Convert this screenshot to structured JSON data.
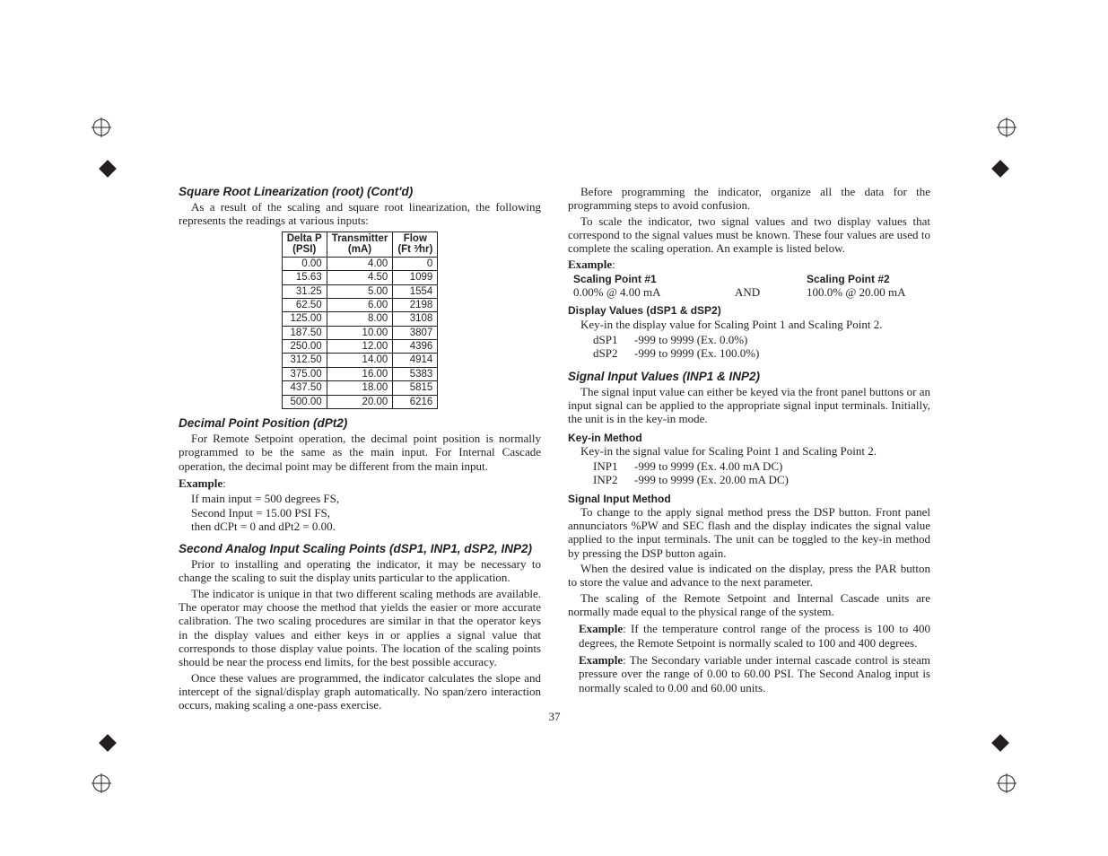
{
  "page_number": "37",
  "left": {
    "h_sqroot": "Square Root Linearization (root) (Cont'd)",
    "p_sqroot": "As a result of the scaling and square root linearization, the following represents the readings at various inputs:",
    "table": {
      "head": {
        "c1a": "Delta P",
        "c1b": "(PSI)",
        "c2a": "Transmitter",
        "c2b": "(mA)",
        "c3a": "Flow",
        "c3b": "(Ft ³⁄hr)"
      },
      "rows": [
        [
          "0.00",
          "4.00",
          "0"
        ],
        [
          "15.63",
          "4.50",
          "1099"
        ],
        [
          "31.25",
          "5.00",
          "1554"
        ],
        [
          "62.50",
          "6.00",
          "2198"
        ],
        [
          "125.00",
          "8.00",
          "3108"
        ],
        [
          "187.50",
          "10.00",
          "3807"
        ],
        [
          "250.00",
          "12.00",
          "4396"
        ],
        [
          "312.50",
          "14.00",
          "4914"
        ],
        [
          "375.00",
          "16.00",
          "5383"
        ],
        [
          "437.50",
          "18.00",
          "5815"
        ],
        [
          "500.00",
          "20.00",
          "6216"
        ]
      ]
    },
    "h_dpt2": "Decimal Point Position (dPt2)",
    "p_dpt2": "For Remote Setpoint operation, the decimal point position is normally programmed to be the same as the main input. For Internal Cascade operation, the decimal point may be different from the main input.",
    "ex_label": "Example",
    "ex_dpt2_1": "If main input = 500 degrees FS,",
    "ex_dpt2_2": "Second Input = 15.00 PSI FS,",
    "ex_dpt2_3": "then dCPt = 0 and dPt2 = 0.00.",
    "h_scaling": "Second Analog Input Scaling Points (dSP1, INP1, dSP2, INP2)",
    "p_sc1": "Prior to installing and operating the indicator, it may be necessary to change the scaling to suit the display units particular to the application.",
    "p_sc2": "The indicator is unique in that two different scaling methods are available. The operator may choose the method that yields the easier or more accurate calibration. The two scaling procedures are similar in that the operator keys in the display values and either keys in or applies a signal value that corresponds to those display value points. The location of the scaling points should be near the process end limits, for the best possible accuracy.",
    "p_sc3": "Once these values are programmed, the indicator calculates the slope and intercept of the signal/display graph automatically. No span/zero interaction occurs, making scaling a one-pass exercise."
  },
  "right": {
    "p_intro1": "Before programming the indicator, organize all the data for the programming steps to avoid confusion.",
    "p_intro2": "To scale the indicator, two signal values and two display values that correspond to the signal values must be known. These four values are used to complete the scaling operation. An example is listed below.",
    "ex_label": "Example",
    "sp1_head": "Scaling Point #1",
    "sp2_head": "Scaling Point #2",
    "sp1_val": "0.00%  @ 4.00 mA",
    "and": "AND",
    "sp2_val": "100.0% @ 20.00 mA",
    "h_disp": "Display Values (dSP1 & dSP2)",
    "p_disp": "Key-in the display value for Scaling Point 1 and Scaling Point 2.",
    "dsp1_k": "dSP1",
    "dsp1_v": "-999 to 9999 (Ex. 0.0%)",
    "dsp2_k": "dSP2",
    "dsp2_v": "-999 to 9999 (Ex. 100.0%)",
    "h_sig": "Signal Input Values (INP1 & INP2)",
    "p_sig": "The signal input value can either be keyed via the front panel buttons or an input signal can be applied to the appropriate signal input terminals. Initially, the unit is in the key-in mode.",
    "h_keyin": "Key-in Method",
    "p_keyin": "Key-in the signal value for Scaling Point 1 and Scaling Point 2.",
    "inp1_k": "INP1",
    "inp1_v": "-999 to 9999  (Ex. 4.00 mA DC)",
    "inp2_k": "INP2",
    "inp2_v": "-999 to 9999  (Ex. 20.00 mA DC)",
    "h_sigm": "Signal Input Method",
    "p_sigm1": "To change to the apply signal method press the DSP button. Front panel annunciators %PW and SEC flash and the display indicates the signal value applied to the input terminals. The unit can be toggled to the key-in method by pressing the DSP button again.",
    "p_sigm2": "When the desired value is indicated on the display, press the PAR button to store the value and advance to the next parameter.",
    "p_sigm3": "The scaling of the Remote Setpoint and Internal Cascade units are normally made equal to the physical range of the system.",
    "ex1_lead": "Example",
    "ex1_body": ": If the temperature control range of the process is 100 to 400 degrees, the Remote Setpoint is normally scaled to 100 and 400 degrees.",
    "ex2_lead": "Example",
    "ex2_body": ": The Secondary variable under internal cascade control is steam pressure over the range of 0.00 to 60.00 PSI. The Second Analog input is normally scaled to 0.00 and 60.00 units."
  }
}
